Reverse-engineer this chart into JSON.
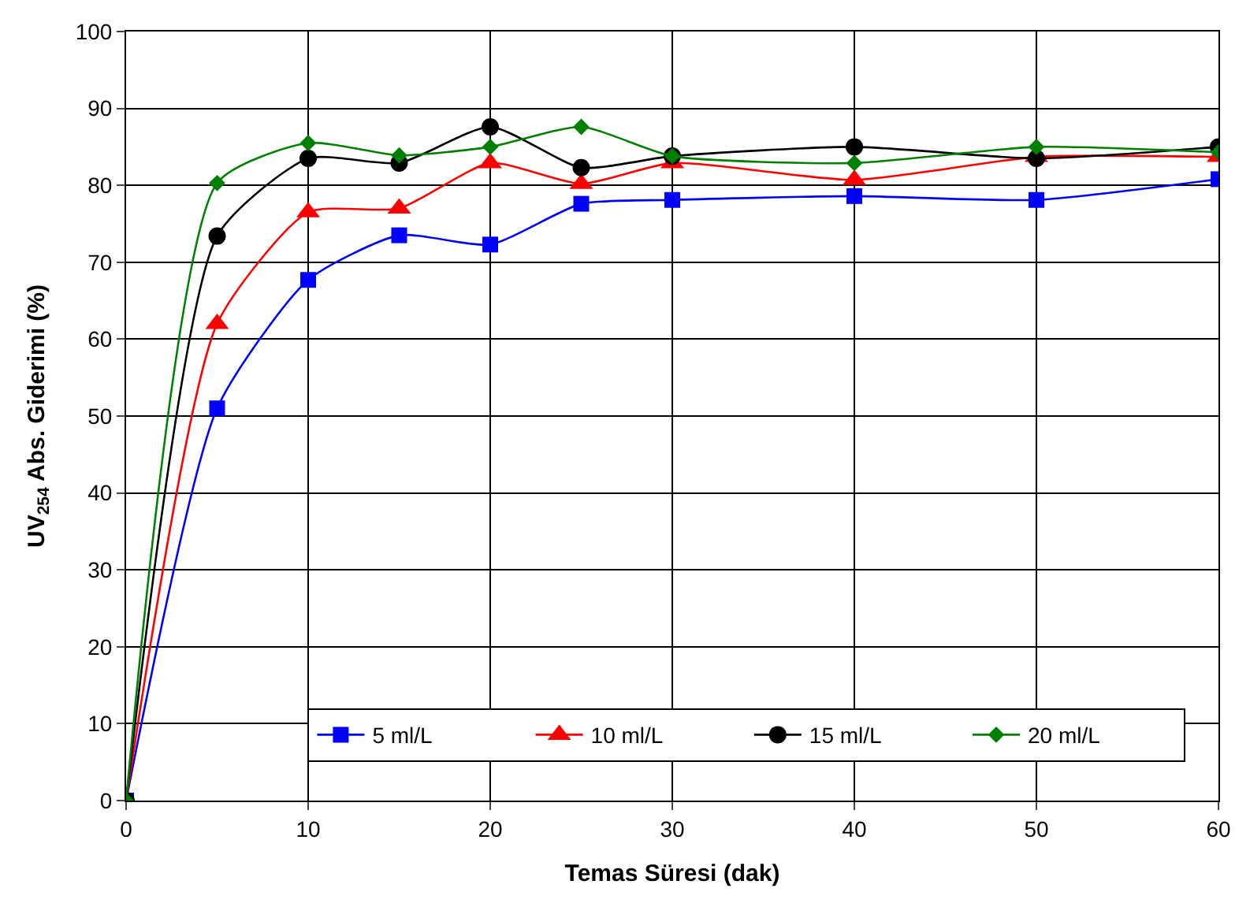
{
  "chart_data": {
    "type": "line",
    "xlabel": "Temas Süresi (dak)",
    "ylabel": "UV$_{254}$ Abs. Giderimi (%)",
    "x": [
      0,
      5,
      10,
      15,
      20,
      25,
      30,
      40,
      50,
      60
    ],
    "xlim": [
      0,
      60
    ],
    "xticks": [
      0,
      10,
      20,
      30,
      40,
      50,
      60
    ],
    "ylim": [
      0,
      100
    ],
    "yticks": [
      0,
      10,
      20,
      30,
      40,
      50,
      60,
      70,
      80,
      90,
      100
    ],
    "grid": true,
    "legend": "bottom right",
    "series": [
      {
        "name": "5 ml/L",
        "color": "#0000ff",
        "marker": "square",
        "values": [
          0,
          51,
          67.7,
          73.5,
          72.3,
          77.6,
          78.1,
          78.6,
          78.1,
          80.8
        ]
      },
      {
        "name": "10 ml/L",
        "color": "#ff0000",
        "marker": "triangle",
        "values": [
          0,
          62,
          76.5,
          77,
          82.9,
          80.2,
          82.9,
          80.7,
          83.7,
          83.7
        ]
      },
      {
        "name": "15 ml/L",
        "color": "#000000",
        "marker": "circle",
        "values": [
          0,
          73.4,
          83.5,
          82.9,
          87.6,
          82.3,
          83.8,
          85,
          83.5,
          85
        ]
      },
      {
        "name": "20 ml/L",
        "color": "#008000",
        "marker": "diamond",
        "values": [
          0,
          80.3,
          85.5,
          83.9,
          85,
          87.6,
          83.8,
          82.9,
          85,
          84.3
        ]
      }
    ]
  }
}
